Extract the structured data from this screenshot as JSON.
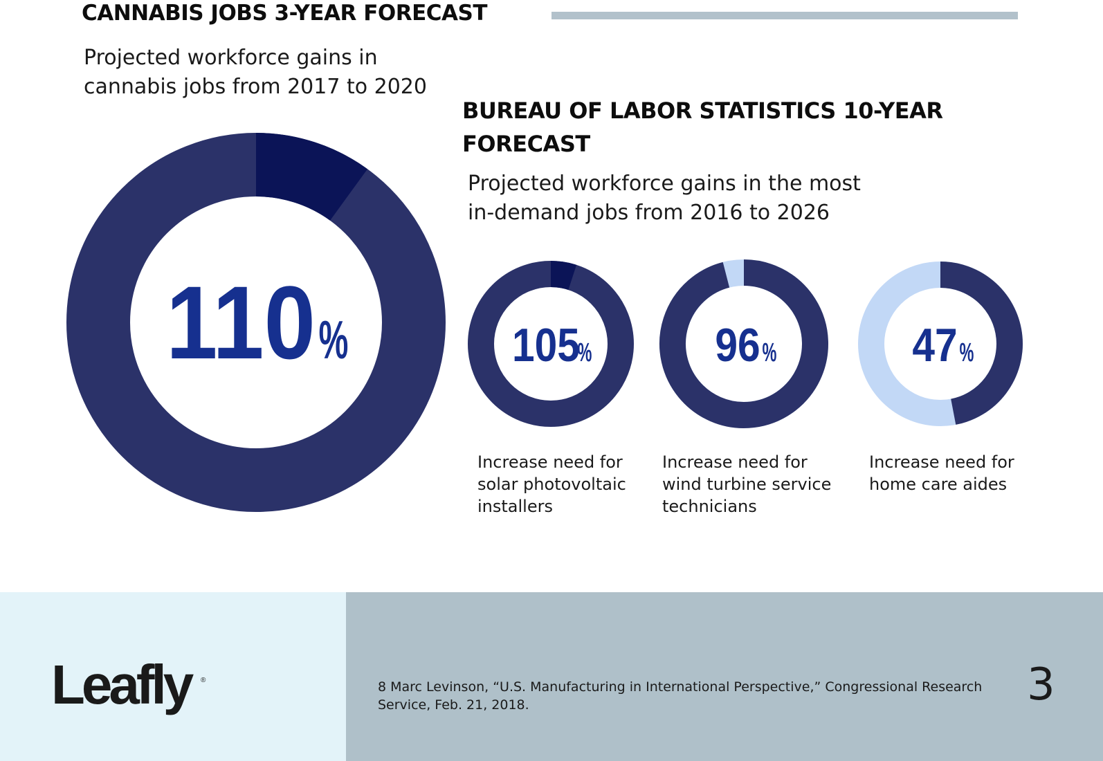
{
  "left": {
    "title": "CANNABIS JOBS 3-YEAR FORECAST",
    "subtitle": "Projected workforce gains in\ncannabis jobs from 2017 to 2020"
  },
  "right": {
    "title": "BUREAU OF LABOR STATISTICS 10-YEAR FORECAST",
    "subtitle": "Projected workforce gains in the most\nin-demand jobs from 2016 to 2026"
  },
  "chart_data": [
    {
      "type": "pie",
      "value": 110,
      "value_label": "110",
      "unit": "%",
      "caption": ""
    },
    {
      "type": "pie",
      "value": 105,
      "value_label": "105",
      "unit": "%",
      "caption": "Increase need for\nsolar photovoltaic\ninstallers"
    },
    {
      "type": "pie",
      "value": 96,
      "value_label": "96",
      "unit": "%",
      "caption": "Increase need for\nwind turbine service\ntechnicians"
    },
    {
      "type": "pie",
      "value": 47,
      "value_label": "47",
      "unit": "%",
      "caption": "Increase need for\nhome care aides"
    }
  ],
  "colors": {
    "base_ring": "#2b3269",
    "overflow": "#0b1457",
    "remainder": "#c2d8f6",
    "number": "#16308f"
  },
  "footer": {
    "logo": "Leafly",
    "logo_mark": "®",
    "footnote": "8 Marc Levinson, “U.S. Manufacturing in International Perspective,” Congressional Research Service, Feb. 21, 2018.",
    "page_number": "3"
  }
}
